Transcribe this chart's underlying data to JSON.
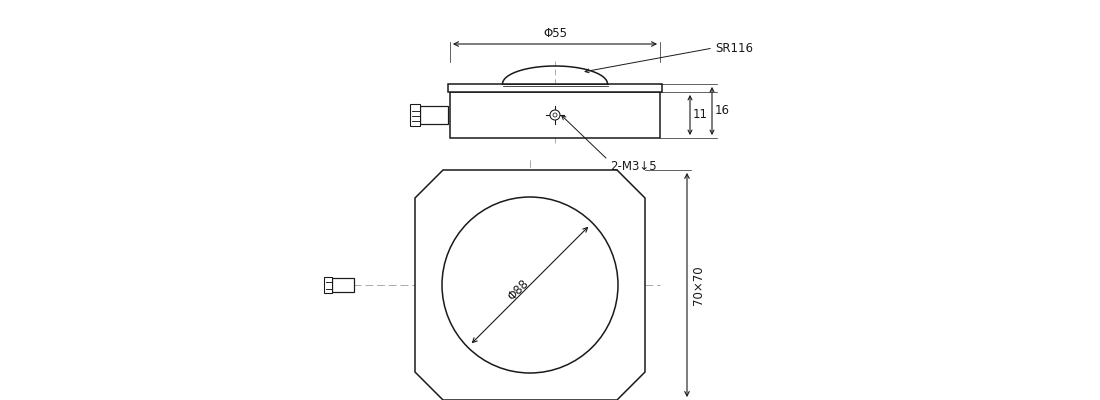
{
  "bg_color": "#ffffff",
  "line_color": "#1a1a1a",
  "center_line_color": "#aaaaaa",
  "top_view": {
    "phi55_label": "Φ55",
    "sr116_label": "SR116",
    "dim11_label": "11",
    "dim16_label": "16",
    "m3_label": "2-M3↓5"
  },
  "front_view": {
    "phi88_label": "Φ88",
    "dim_label": "70×70"
  }
}
